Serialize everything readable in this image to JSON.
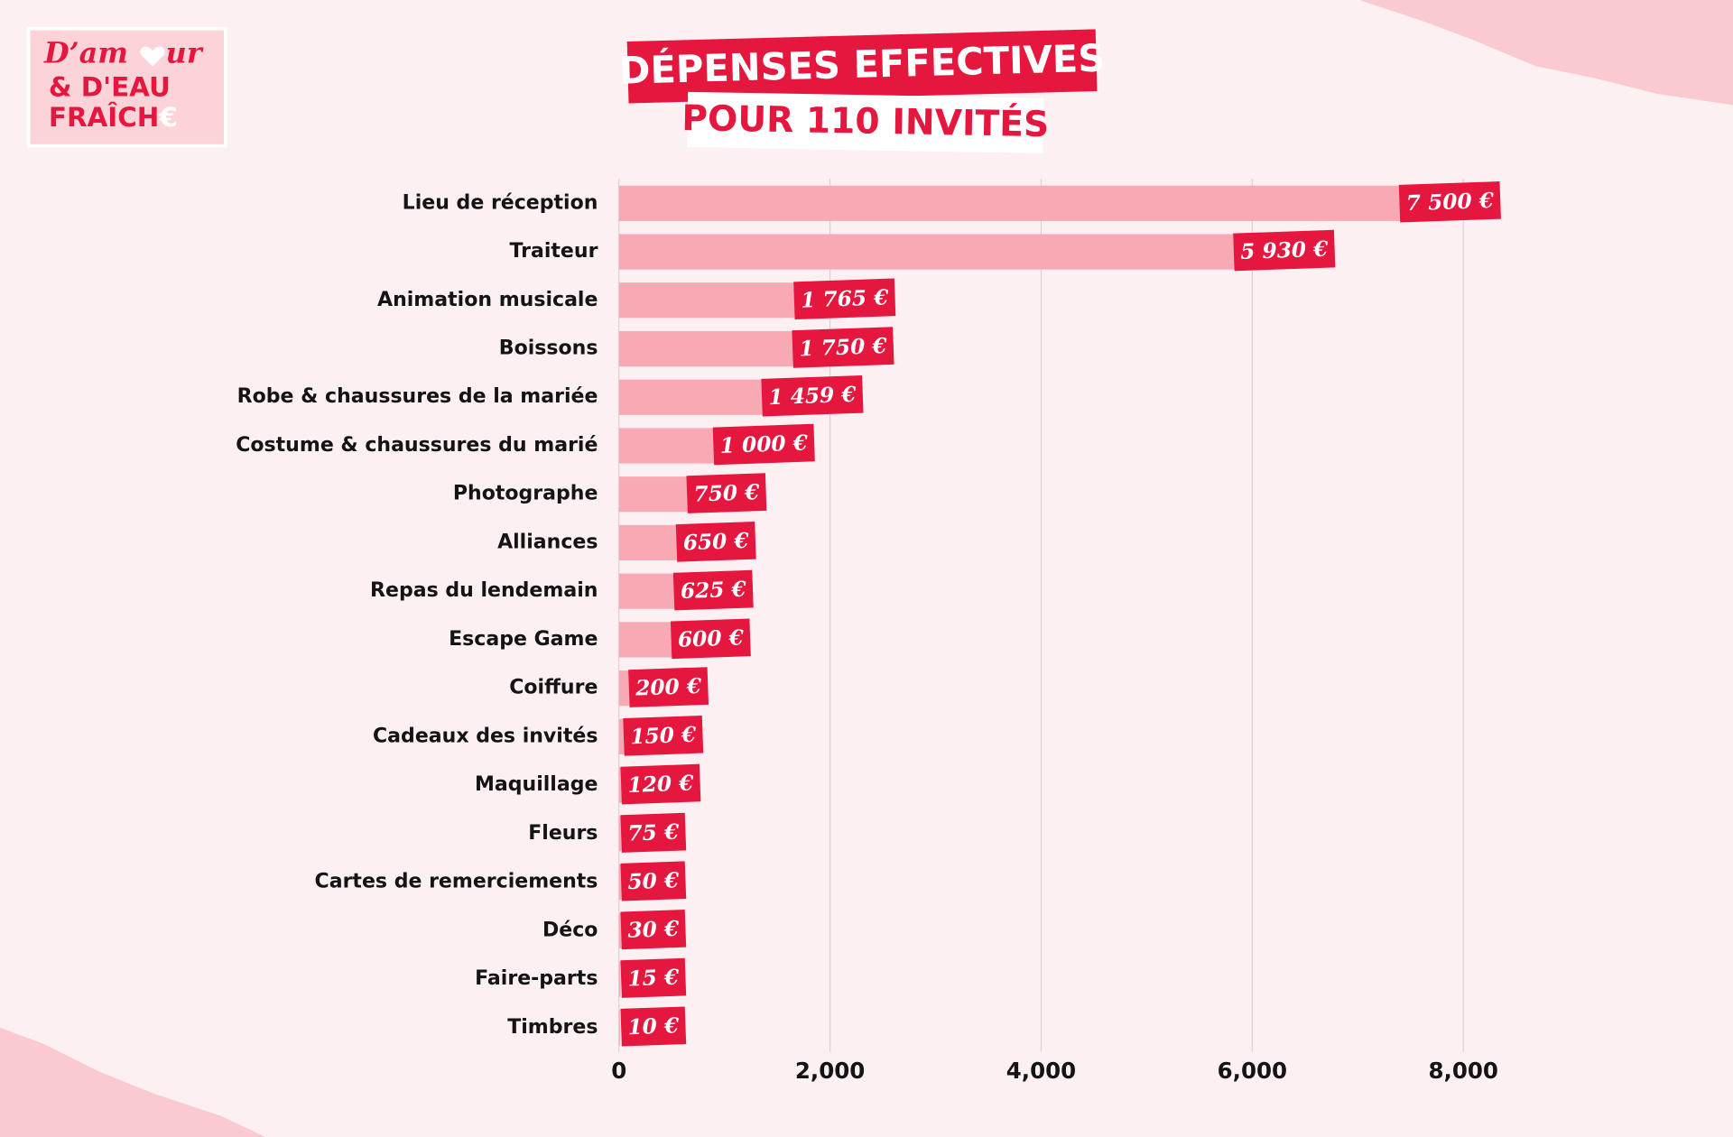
{
  "logo": {
    "line1_a": "D’am",
    "line1_b": "ur",
    "line2": "& D'EAU",
    "line3": "FRAÎCH",
    "line3_end": "€"
  },
  "chart_data": {
    "type": "bar",
    "orientation": "horizontal",
    "title": "DÉPENSES EFFECTIVES",
    "subtitle": "POUR 110 INVITÉS",
    "categories": [
      "Lieu de réception",
      "Traiteur",
      "Animation musicale",
      "Boissons",
      "Robe & chaussures de la mariée",
      "Costume & chaussures du marié",
      "Photographe",
      "Alliances",
      "Repas du lendemain",
      "Escape Game",
      "Coiffure",
      "Cadeaux des invités",
      "Maquillage",
      "Fleurs",
      "Cartes de remerciements",
      "Déco",
      "Faire-parts",
      "Timbres"
    ],
    "values": [
      7500,
      5930,
      1765,
      1750,
      1459,
      1000,
      750,
      650,
      625,
      600,
      200,
      150,
      120,
      75,
      50,
      30,
      15,
      10
    ],
    "value_labels": [
      "7 500 €",
      "5 930 €",
      "1 765 €",
      "1 750 €",
      "1 459 €",
      "1 000 €",
      "750 €",
      "650 €",
      "625 €",
      "600 €",
      "200 €",
      "150 €",
      "120 €",
      "75 €",
      "50 €",
      "30 €",
      "15 €",
      "10 €"
    ],
    "color": "#f8a9b4",
    "label_color": "#e5173f",
    "xlim": [
      0,
      8000
    ],
    "xticks": [
      0,
      {
        "value": 2000,
        "label": "2,000"
      },
      {
        "value": 4000,
        "label": "4,000"
      },
      {
        "value": 6000,
        "label": "6,000"
      },
      {
        "value": 8000,
        "label": "8,000"
      }
    ],
    "grid": true
  }
}
